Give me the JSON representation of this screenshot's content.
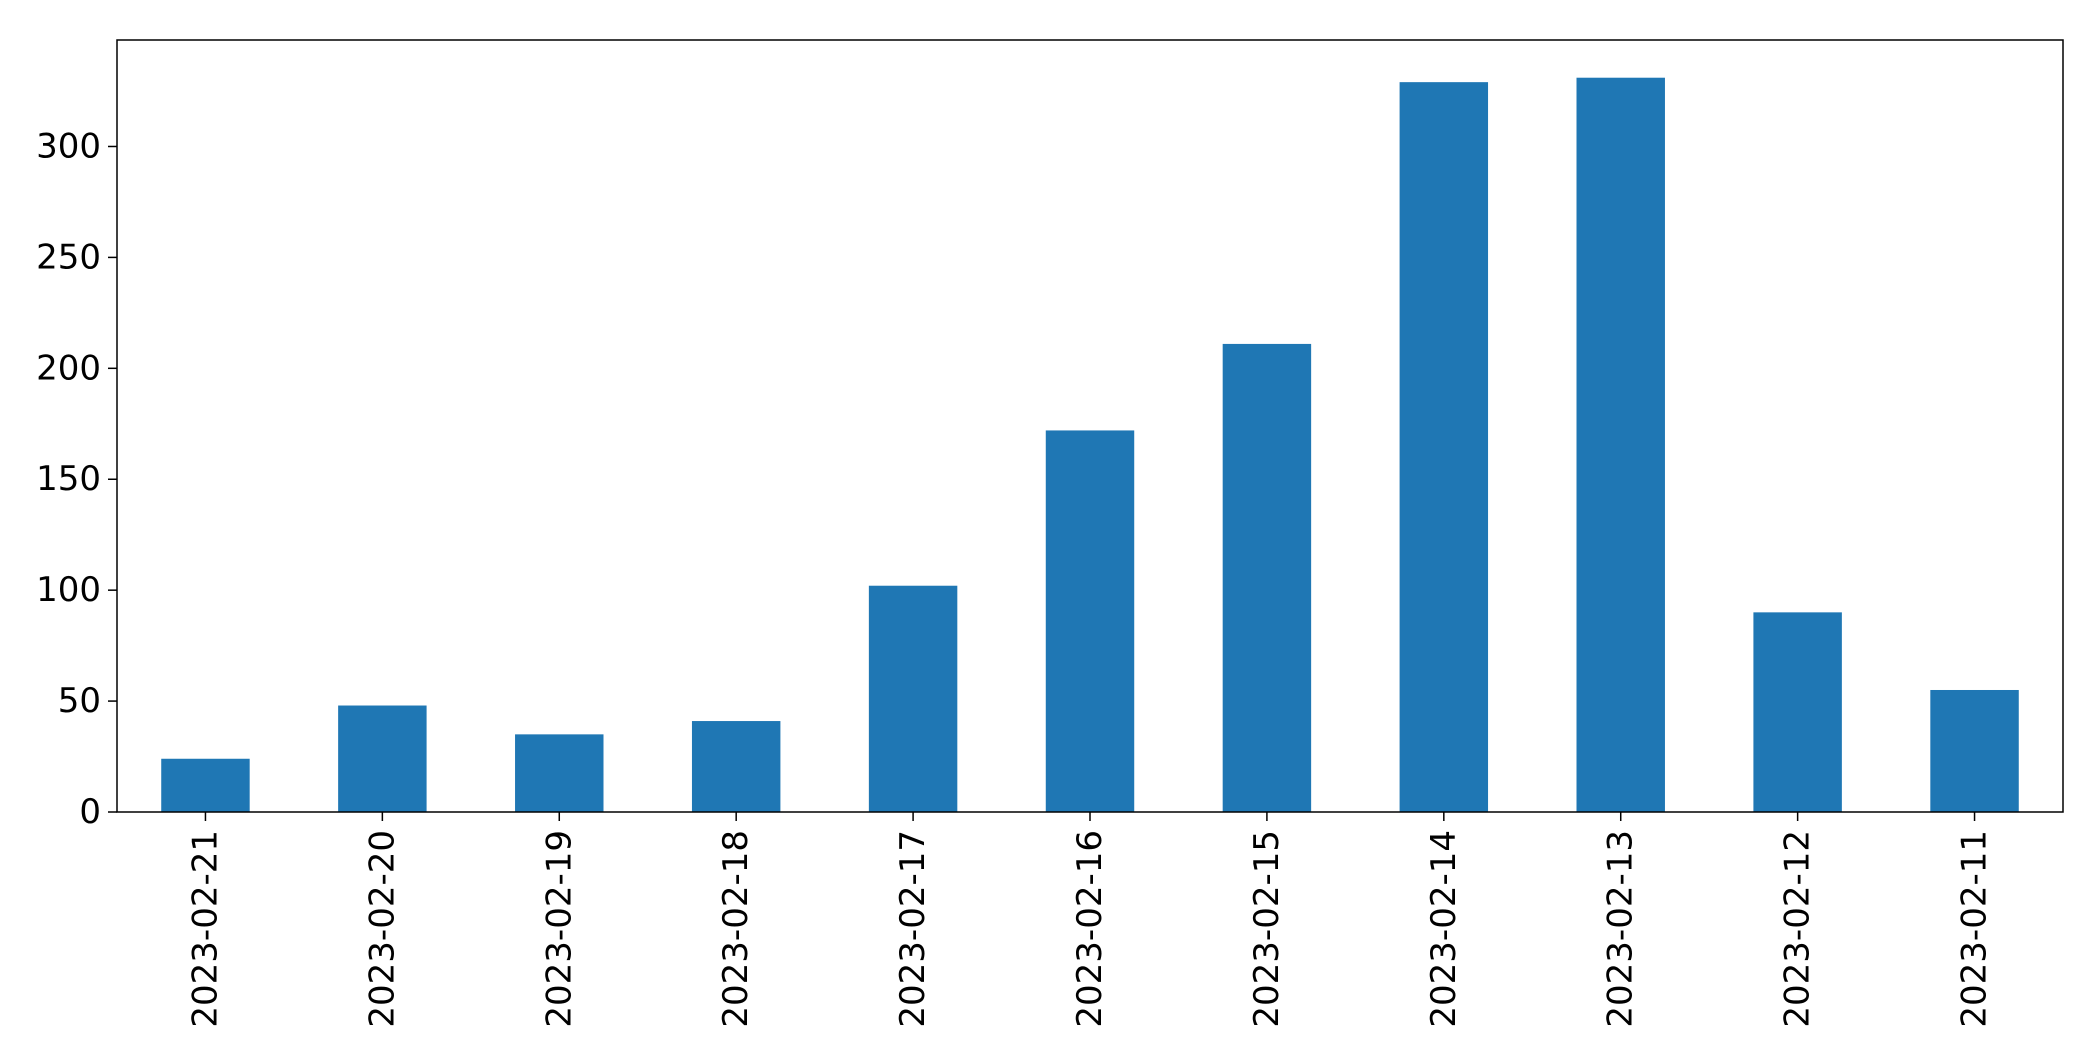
{
  "chart_data": {
    "type": "bar",
    "categories": [
      "2023-02-21",
      "2023-02-20",
      "2023-02-19",
      "2023-02-18",
      "2023-02-17",
      "2023-02-16",
      "2023-02-15",
      "2023-02-14",
      "2023-02-13",
      "2023-02-12",
      "2023-02-11"
    ],
    "values": [
      24,
      48,
      35,
      41,
      102,
      172,
      211,
      329,
      331,
      90,
      55
    ],
    "yticks": [
      "0",
      "50",
      "100",
      "150",
      "200",
      "250",
      "300"
    ],
    "ylim": [
      0,
      348
    ],
    "title": "",
    "xlabel": "",
    "ylabel": "",
    "grid": false,
    "bar_color": "#1f77b4"
  }
}
